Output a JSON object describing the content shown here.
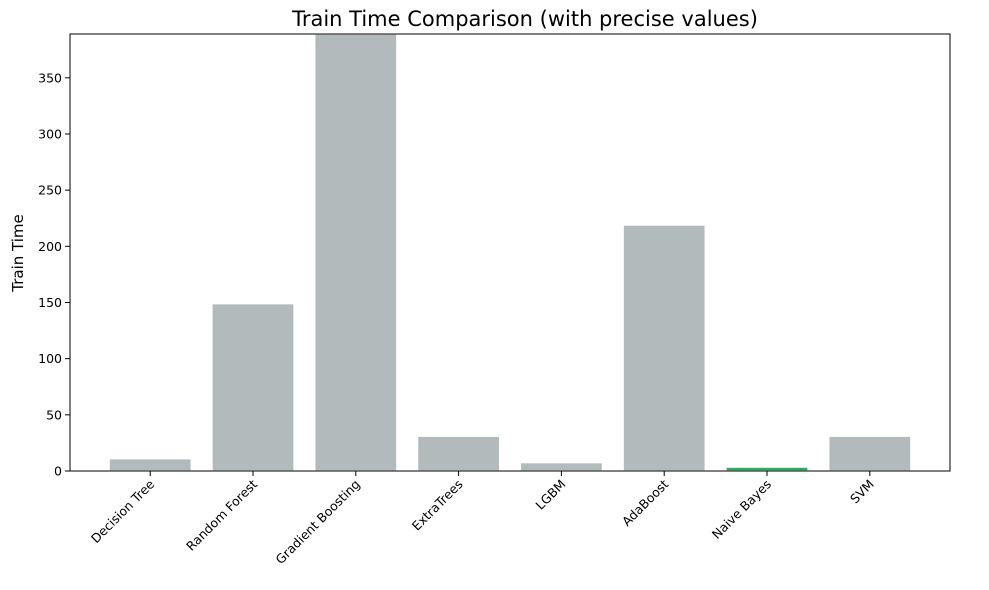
{
  "chart_data": {
    "type": "bar",
    "title": "Train Time Comparison (with precise values)",
    "xlabel": "",
    "ylabel": "Train Time",
    "categories": [
      "Decision Tree",
      "Random Forest",
      "Gradient Boosting",
      "ExtraTrees",
      "LGBM",
      "AdaBoost",
      "Naive Bayes",
      "SVM"
    ],
    "values": [
      11.0,
      149.0,
      389.0,
      31.0,
      7.5,
      219.0,
      3.5,
      31.0
    ],
    "ylim": [
      0,
      389
    ],
    "yticks": [
      0,
      50,
      100,
      150,
      200,
      250,
      300,
      350
    ],
    "highlight_index": 6,
    "colors": {
      "bar": "#b2babb",
      "highlight": "#27ae60",
      "axis": "#000000"
    },
    "grid": false,
    "legend": "none"
  }
}
